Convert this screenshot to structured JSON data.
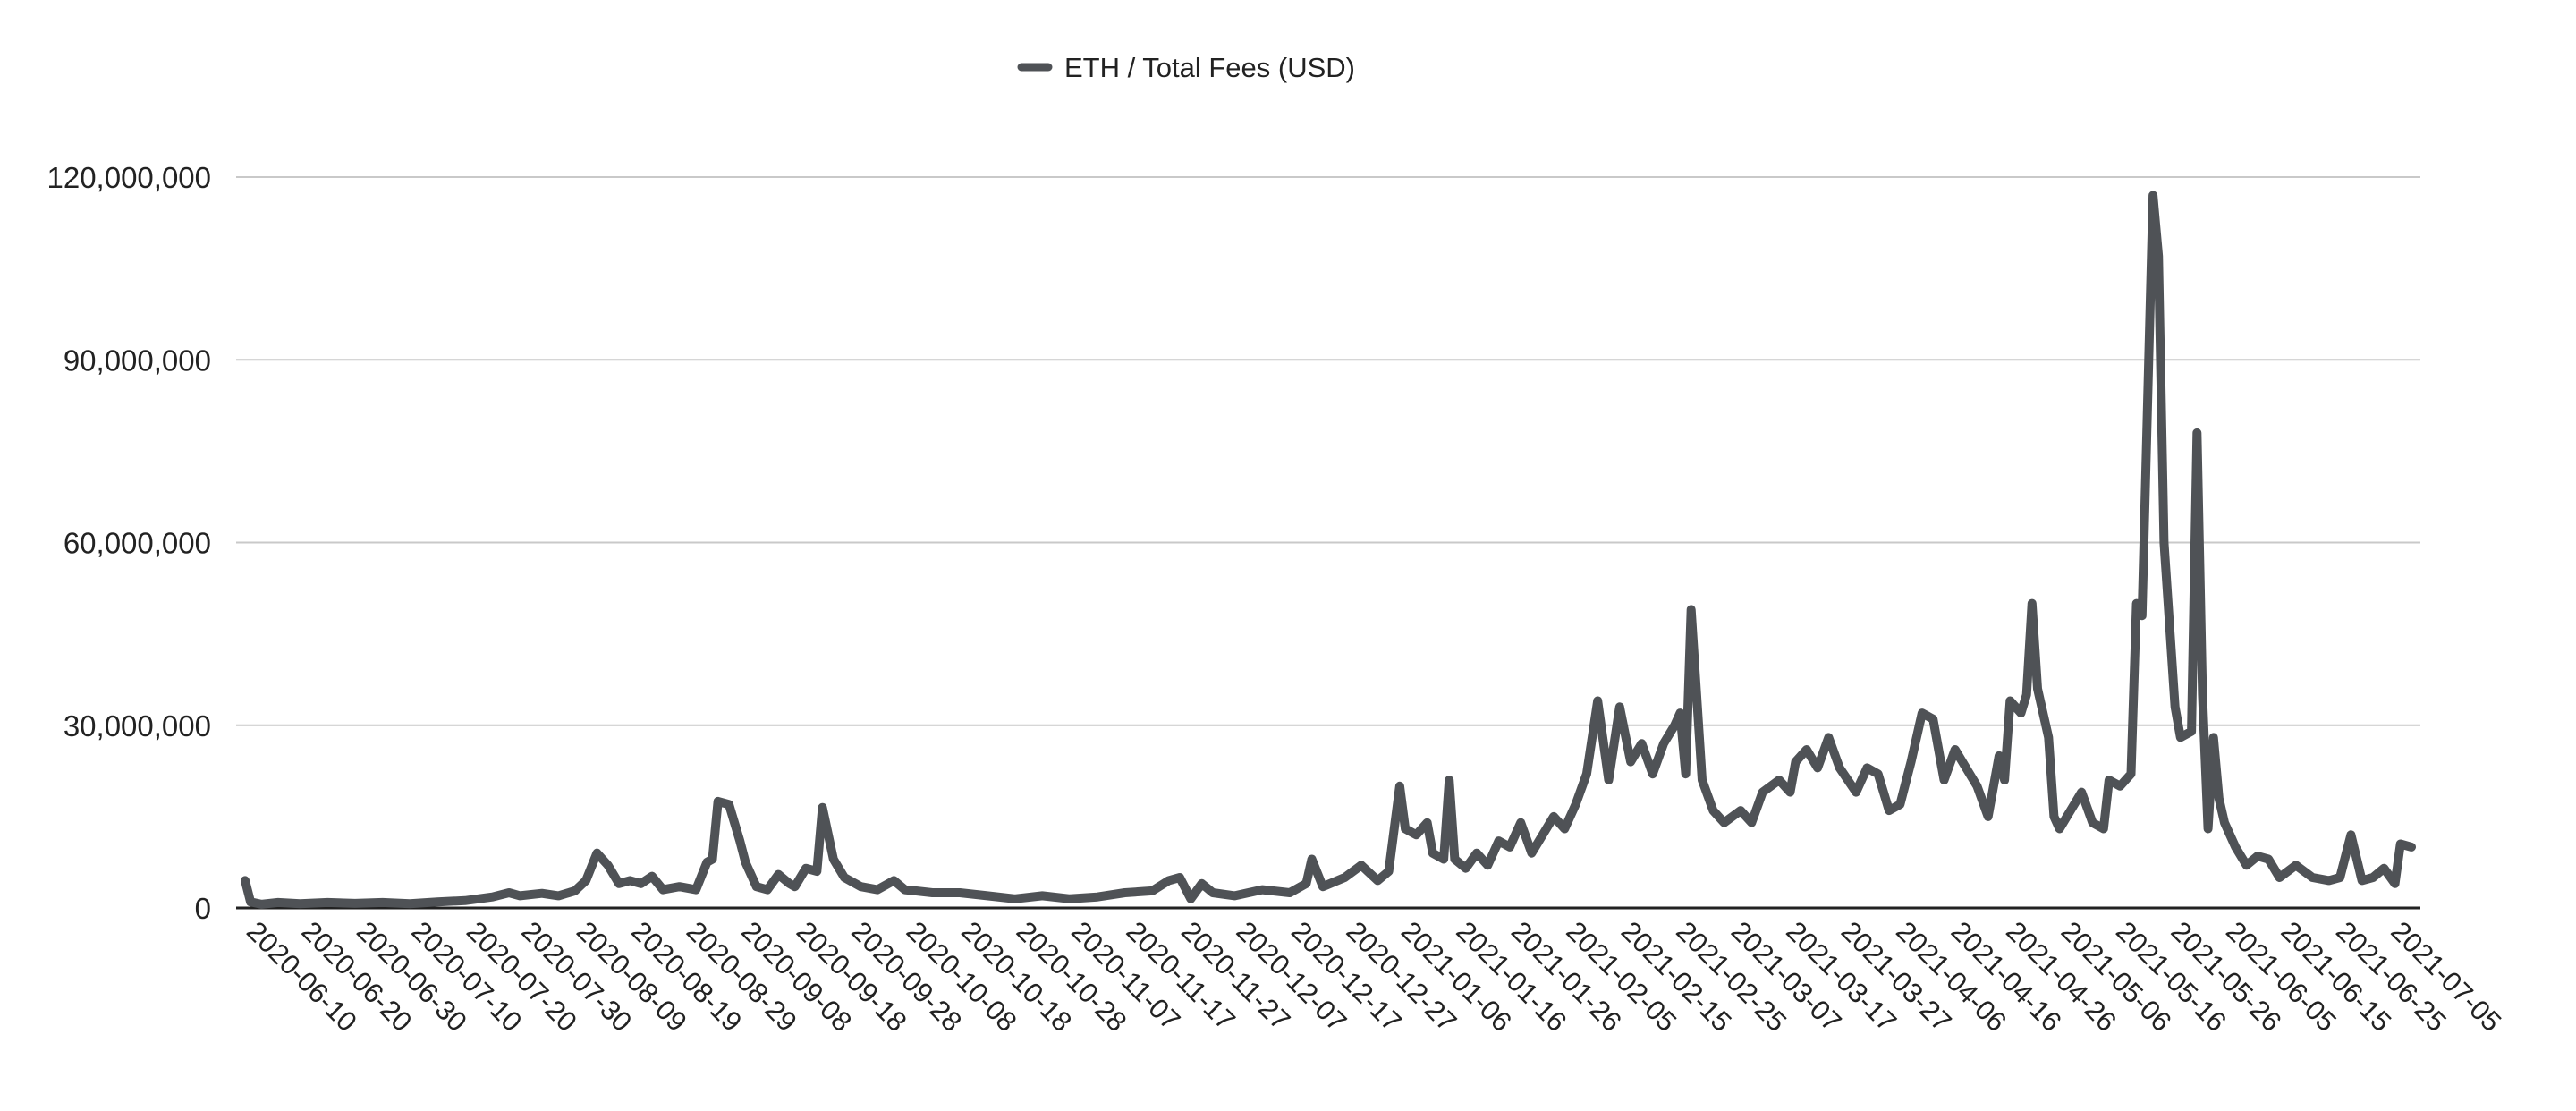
{
  "chart_data": {
    "type": "line",
    "title": "",
    "xlabel": "",
    "ylabel": "",
    "legend_position": "top-center",
    "grid": true,
    "ylim": [
      0,
      120000000
    ],
    "yticks": [
      0,
      30000000,
      60000000,
      90000000,
      120000000
    ],
    "ytick_labels": [
      "0",
      "30,000,000",
      "60,000,000",
      "90,000,000",
      "120,000,000"
    ],
    "x_start": "2020-06-10",
    "x_end": "2021-07-09",
    "xticks": [
      "2020-06-10",
      "2020-06-20",
      "2020-06-30",
      "2020-07-10",
      "2020-07-20",
      "2020-07-30",
      "2020-08-09",
      "2020-08-19",
      "2020-08-29",
      "2020-09-08",
      "2020-09-18",
      "2020-09-28",
      "2020-10-08",
      "2020-10-18",
      "2020-10-28",
      "2020-11-07",
      "2020-11-17",
      "2020-11-27",
      "2020-12-07",
      "2020-12-17",
      "2020-12-27",
      "2021-01-06",
      "2021-01-16",
      "2021-01-26",
      "2021-02-05",
      "2021-02-15",
      "2021-02-25",
      "2021-03-07",
      "2021-03-17",
      "2021-03-27",
      "2021-04-06",
      "2021-04-16",
      "2021-04-26",
      "2021-05-06",
      "2021-05-16",
      "2021-05-26",
      "2021-06-05",
      "2021-06-15",
      "2021-06-25",
      "2021-07-05"
    ],
    "series": [
      {
        "name": "ETH / Total Fees (USD)",
        "color": "#4f5256",
        "points": [
          [
            "2020-06-10",
            4500000
          ],
          [
            "2020-06-11",
            1000000
          ],
          [
            "2020-06-13",
            600000
          ],
          [
            "2020-06-16",
            900000
          ],
          [
            "2020-06-20",
            700000
          ],
          [
            "2020-06-25",
            900000
          ],
          [
            "2020-06-30",
            750000
          ],
          [
            "2020-07-05",
            900000
          ],
          [
            "2020-07-10",
            700000
          ],
          [
            "2020-07-15",
            1000000
          ],
          [
            "2020-07-20",
            1200000
          ],
          [
            "2020-07-25",
            1800000
          ],
          [
            "2020-07-28",
            2500000
          ],
          [
            "2020-07-30",
            2000000
          ],
          [
            "2020-08-03",
            2400000
          ],
          [
            "2020-08-06",
            2000000
          ],
          [
            "2020-08-09",
            2800000
          ],
          [
            "2020-08-11",
            4500000
          ],
          [
            "2020-08-13",
            9000000
          ],
          [
            "2020-08-15",
            7000000
          ],
          [
            "2020-08-17",
            4000000
          ],
          [
            "2020-08-19",
            4500000
          ],
          [
            "2020-08-21",
            4000000
          ],
          [
            "2020-08-23",
            5200000
          ],
          [
            "2020-08-25",
            3000000
          ],
          [
            "2020-08-28",
            3500000
          ],
          [
            "2020-08-31",
            3000000
          ],
          [
            "2020-09-02",
            7500000
          ],
          [
            "2020-09-03",
            8000000
          ],
          [
            "2020-09-04",
            17500000
          ],
          [
            "2020-09-06",
            17000000
          ],
          [
            "2020-09-08",
            11000000
          ],
          [
            "2020-09-09",
            7500000
          ],
          [
            "2020-09-11",
            3500000
          ],
          [
            "2020-09-13",
            3000000
          ],
          [
            "2020-09-15",
            5500000
          ],
          [
            "2020-09-17",
            4000000
          ],
          [
            "2020-09-18",
            3500000
          ],
          [
            "2020-09-20",
            6500000
          ],
          [
            "2020-09-22",
            6000000
          ],
          [
            "2020-09-23",
            16500000
          ],
          [
            "2020-09-25",
            8000000
          ],
          [
            "2020-09-27",
            5000000
          ],
          [
            "2020-09-30",
            3500000
          ],
          [
            "2020-10-03",
            3000000
          ],
          [
            "2020-10-06",
            4500000
          ],
          [
            "2020-10-08",
            3000000
          ],
          [
            "2020-10-13",
            2500000
          ],
          [
            "2020-10-18",
            2500000
          ],
          [
            "2020-10-23",
            2000000
          ],
          [
            "2020-10-28",
            1500000
          ],
          [
            "2020-11-02",
            2000000
          ],
          [
            "2020-11-07",
            1500000
          ],
          [
            "2020-11-12",
            1800000
          ],
          [
            "2020-11-17",
            2500000
          ],
          [
            "2020-11-22",
            2800000
          ],
          [
            "2020-11-25",
            4500000
          ],
          [
            "2020-11-27",
            5000000
          ],
          [
            "2020-11-29",
            1500000
          ],
          [
            "2020-12-01",
            4000000
          ],
          [
            "2020-12-03",
            2500000
          ],
          [
            "2020-12-07",
            2000000
          ],
          [
            "2020-12-12",
            3000000
          ],
          [
            "2020-12-17",
            2500000
          ],
          [
            "2020-12-20",
            4000000
          ],
          [
            "2020-12-21",
            8000000
          ],
          [
            "2020-12-23",
            3500000
          ],
          [
            "2020-12-27",
            5000000
          ],
          [
            "2020-12-30",
            7000000
          ],
          [
            "2021-01-02",
            4500000
          ],
          [
            "2021-01-04",
            6000000
          ],
          [
            "2021-01-06",
            20000000
          ],
          [
            "2021-01-07",
            13000000
          ],
          [
            "2021-01-09",
            12000000
          ],
          [
            "2021-01-11",
            14000000
          ],
          [
            "2021-01-12",
            9000000
          ],
          [
            "2021-01-14",
            8000000
          ],
          [
            "2021-01-15",
            21000000
          ],
          [
            "2021-01-16",
            8000000
          ],
          [
            "2021-01-18",
            6500000
          ],
          [
            "2021-01-20",
            9000000
          ],
          [
            "2021-01-22",
            7000000
          ],
          [
            "2021-01-24",
            11000000
          ],
          [
            "2021-01-26",
            10000000
          ],
          [
            "2021-01-28",
            14000000
          ],
          [
            "2021-01-30",
            9000000
          ],
          [
            "2021-02-01",
            12000000
          ],
          [
            "2021-02-03",
            15000000
          ],
          [
            "2021-02-05",
            13000000
          ],
          [
            "2021-02-07",
            17000000
          ],
          [
            "2021-02-09",
            22000000
          ],
          [
            "2021-02-11",
            34000000
          ],
          [
            "2021-02-13",
            21000000
          ],
          [
            "2021-02-15",
            33000000
          ],
          [
            "2021-02-17",
            24000000
          ],
          [
            "2021-02-19",
            27000000
          ],
          [
            "2021-02-21",
            22000000
          ],
          [
            "2021-02-23",
            27000000
          ],
          [
            "2021-02-25",
            30000000
          ],
          [
            "2021-02-26",
            32000000
          ],
          [
            "2021-02-27",
            22000000
          ],
          [
            "2021-02-28",
            49000000
          ],
          [
            "2021-03-02",
            21000000
          ],
          [
            "2021-03-04",
            16000000
          ],
          [
            "2021-03-06",
            14000000
          ],
          [
            "2021-03-09",
            16000000
          ],
          [
            "2021-03-11",
            14000000
          ],
          [
            "2021-03-13",
            19000000
          ],
          [
            "2021-03-16",
            21000000
          ],
          [
            "2021-03-18",
            19000000
          ],
          [
            "2021-03-19",
            24000000
          ],
          [
            "2021-03-21",
            26000000
          ],
          [
            "2021-03-23",
            23000000
          ],
          [
            "2021-03-25",
            28000000
          ],
          [
            "2021-03-27",
            23000000
          ],
          [
            "2021-03-30",
            19000000
          ],
          [
            "2021-04-01",
            23000000
          ],
          [
            "2021-04-03",
            22000000
          ],
          [
            "2021-04-05",
            16000000
          ],
          [
            "2021-04-07",
            17000000
          ],
          [
            "2021-04-09",
            24000000
          ],
          [
            "2021-04-11",
            32000000
          ],
          [
            "2021-04-13",
            31000000
          ],
          [
            "2021-04-15",
            21000000
          ],
          [
            "2021-04-17",
            26000000
          ],
          [
            "2021-04-19",
            23000000
          ],
          [
            "2021-04-21",
            20000000
          ],
          [
            "2021-04-23",
            15000000
          ],
          [
            "2021-04-25",
            25000000
          ],
          [
            "2021-04-26",
            21000000
          ],
          [
            "2021-04-27",
            34000000
          ],
          [
            "2021-04-29",
            32000000
          ],
          [
            "2021-04-30",
            35000000
          ],
          [
            "2021-05-01",
            50000000
          ],
          [
            "2021-05-02",
            36000000
          ],
          [
            "2021-05-04",
            28000000
          ],
          [
            "2021-05-05",
            15000000
          ],
          [
            "2021-05-06",
            13000000
          ],
          [
            "2021-05-08",
            16000000
          ],
          [
            "2021-05-10",
            19000000
          ],
          [
            "2021-05-12",
            14000000
          ],
          [
            "2021-05-14",
            13000000
          ],
          [
            "2021-05-15",
            21000000
          ],
          [
            "2021-05-17",
            20000000
          ],
          [
            "2021-05-19",
            22000000
          ],
          [
            "2021-05-20",
            50000000
          ],
          [
            "2021-05-21",
            48000000
          ],
          [
            "2021-05-23",
            117000000
          ],
          [
            "2021-05-24",
            107000000
          ],
          [
            "2021-05-25",
            60000000
          ],
          [
            "2021-05-27",
            33000000
          ],
          [
            "2021-05-28",
            28000000
          ],
          [
            "2021-05-30",
            29000000
          ],
          [
            "2021-05-31",
            78000000
          ],
          [
            "2021-06-01",
            35000000
          ],
          [
            "2021-06-02",
            13000000
          ],
          [
            "2021-06-03",
            28000000
          ],
          [
            "2021-06-04",
            18000000
          ],
          [
            "2021-06-05",
            14000000
          ],
          [
            "2021-06-07",
            10000000
          ],
          [
            "2021-06-09",
            7000000
          ],
          [
            "2021-06-11",
            8500000
          ],
          [
            "2021-06-13",
            8000000
          ],
          [
            "2021-06-15",
            5000000
          ],
          [
            "2021-06-18",
            7000000
          ],
          [
            "2021-06-21",
            5000000
          ],
          [
            "2021-06-24",
            4500000
          ],
          [
            "2021-06-26",
            5000000
          ],
          [
            "2021-06-28",
            12000000
          ],
          [
            "2021-06-30",
            4500000
          ],
          [
            "2021-07-02",
            5000000
          ],
          [
            "2021-07-04",
            6500000
          ],
          [
            "2021-07-06",
            4000000
          ],
          [
            "2021-07-07",
            10500000
          ],
          [
            "2021-07-09",
            10000000
          ]
        ]
      }
    ]
  }
}
